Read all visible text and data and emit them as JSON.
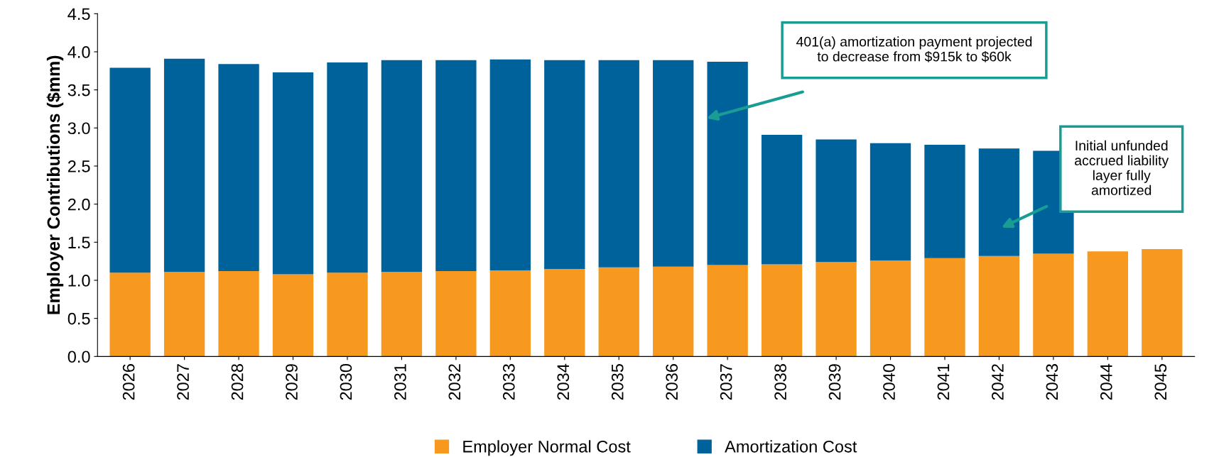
{
  "chart_data": {
    "type": "bar",
    "stacked": true,
    "ylabel": "Employer Contributions ($mm)",
    "categories": [
      "2026",
      "2027",
      "2028",
      "2029",
      "2030",
      "2031",
      "2032",
      "2033",
      "2034",
      "2035",
      "2036",
      "2037",
      "2038",
      "2039",
      "2040",
      "2041",
      "2042",
      "2043",
      "2044",
      "2045"
    ],
    "series": [
      {
        "name": "Employer Normal Cost",
        "color": "#f7991f",
        "values": [
          1.1,
          1.11,
          1.12,
          1.08,
          1.1,
          1.11,
          1.12,
          1.13,
          1.15,
          1.17,
          1.18,
          1.2,
          1.21,
          1.24,
          1.26,
          1.29,
          1.32,
          1.35,
          1.38,
          1.41
        ]
      },
      {
        "name": "Amortization Cost",
        "color": "#00629b",
        "values": [
          2.69,
          2.8,
          2.72,
          2.65,
          2.76,
          2.78,
          2.77,
          2.77,
          2.74,
          2.72,
          2.71,
          2.67,
          1.7,
          1.61,
          1.54,
          1.49,
          1.41,
          1.35,
          null,
          null
        ]
      }
    ],
    "ylim": [
      0,
      4.5
    ],
    "yticks": [
      {
        "value": 0,
        "label": "0.0"
      },
      {
        "value": 0.5,
        "label": "0.5"
      },
      {
        "value": 1,
        "label": "1.0"
      },
      {
        "value": 1.5,
        "label": "1.5"
      },
      {
        "value": 2,
        "label": "2.0"
      },
      {
        "value": 2.5,
        "label": "2.5"
      },
      {
        "value": 3,
        "label": "3.0"
      },
      {
        "value": 3.5,
        "label": "3.5"
      },
      {
        "value": 4,
        "label": "4.0"
      },
      {
        "value": 4.5,
        "label": "4.5"
      }
    ],
    "grid": false,
    "legend": "bottom",
    "annotations": [
      "401(a) amortization payment projected\nto decrease from $915k to $60k",
      "Initial unfunded\naccrued liability\nlayer fully\namortized"
    ]
  }
}
